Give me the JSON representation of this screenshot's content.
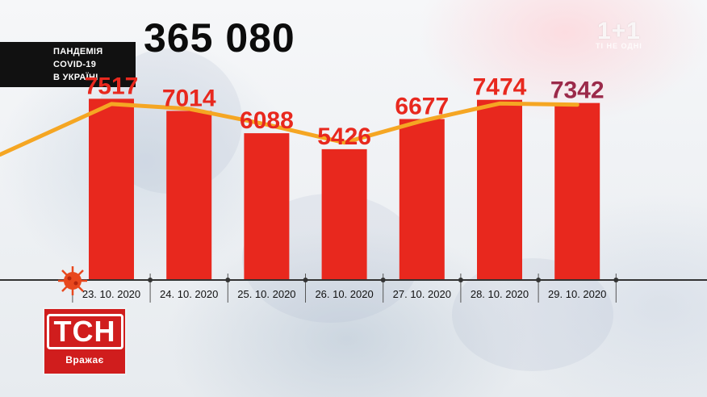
{
  "header": {
    "title_lines": [
      "ПАНДЕМІЯ",
      "COVID-19",
      "В УКРАЇНІ"
    ],
    "total": "365 080"
  },
  "watermark": {
    "logo": "1+1",
    "subtitle": "ТІ НЕ ОДНІ"
  },
  "badge": {
    "logo": "ТСН",
    "subtitle": "Вражає"
  },
  "colors": {
    "bar": "#e8281e",
    "line": "#f5a623",
    "value_text": "#e8281e",
    "last_value_text": "#9b2a4a",
    "axis": "#333333"
  },
  "chart_data": {
    "type": "bar",
    "title": "",
    "xlabel": "",
    "ylabel": "",
    "categories": [
      "23. 10. 2020",
      "24. 10. 2020",
      "25. 10. 2020",
      "26. 10. 2020",
      "27. 10. 2020",
      "28. 10. 2020",
      "29. 10. 2020"
    ],
    "values": [
      7517,
      7014,
      6088,
      5426,
      6677,
      7474,
      7342
    ],
    "ylim": [
      0,
      8200
    ],
    "grid": false,
    "overlay_line": {
      "type": "line",
      "values": [
        7300,
        7100,
        6450,
        5700,
        6600,
        7320,
        7270
      ]
    }
  }
}
